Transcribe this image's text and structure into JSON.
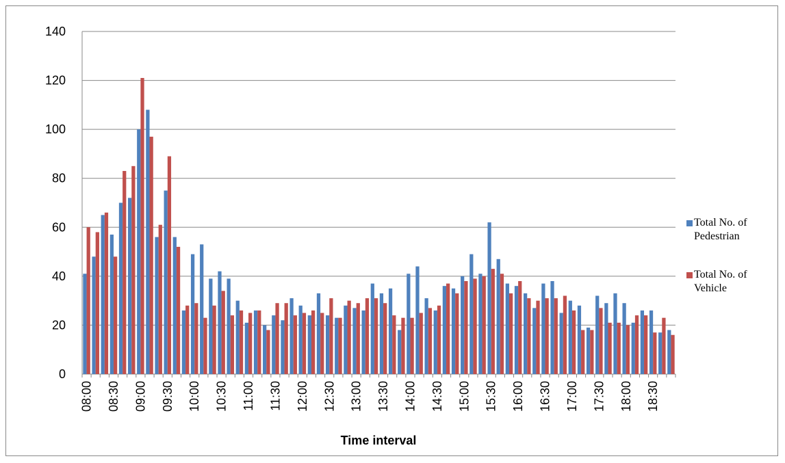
{
  "chart_data": {
    "type": "bar",
    "x_label": "Time interval",
    "categories": [
      "08:00",
      null,
      null,
      "08:30",
      null,
      null,
      "09:00",
      null,
      null,
      "09:30",
      null,
      null,
      "10:00",
      null,
      null,
      "10:30",
      null,
      null,
      "11:00",
      null,
      null,
      "11:30",
      null,
      null,
      "12:00",
      null,
      null,
      "12:30",
      null,
      null,
      "13:00",
      null,
      null,
      "13:30",
      null,
      null,
      "14:00",
      null,
      null,
      "14:30",
      null,
      null,
      "15:00",
      null,
      null,
      "15:30",
      null,
      null,
      "16:00",
      null,
      null,
      "16:30",
      null,
      null,
      "17:00",
      null,
      null,
      "17:30",
      null,
      null,
      "18:00",
      null,
      null,
      "18:30",
      null,
      null
    ],
    "series": [
      {
        "name": "Total No. of Pedestrian",
        "color": "#4f81bd",
        "values": [
          41,
          48,
          65,
          57,
          70,
          72,
          100,
          108,
          56,
          75,
          56,
          26,
          49,
          53,
          39,
          42,
          39,
          30,
          21,
          26,
          20,
          24,
          22,
          31,
          28,
          24,
          33,
          24,
          23,
          28,
          27,
          26,
          37,
          33,
          35,
          18,
          41,
          44,
          31,
          26,
          36,
          35,
          40,
          49,
          41,
          62,
          47,
          37,
          36,
          33,
          27,
          37,
          38,
          25,
          30,
          28,
          19,
          32,
          29,
          33,
          29,
          21,
          26,
          26,
          17,
          18
        ]
      },
      {
        "name": "Total No. of Vehicle",
        "color": "#c0504d",
        "values": [
          60,
          58,
          66,
          48,
          83,
          85,
          121,
          97,
          61,
          89,
          52,
          28,
          29,
          23,
          28,
          34,
          24,
          26,
          25,
          26,
          18,
          29,
          29,
          24,
          25,
          26,
          25,
          31,
          23,
          30,
          29,
          31,
          31,
          29,
          24,
          23,
          23,
          25,
          27,
          28,
          37,
          33,
          38,
          39,
          40,
          43,
          41,
          33,
          38,
          31,
          30,
          31,
          31,
          32,
          26,
          18,
          18,
          27,
          21,
          21,
          20,
          24,
          24,
          17,
          23,
          16
        ]
      }
    ],
    "ylim": [
      0,
      140
    ],
    "yticks": [
      0,
      20,
      40,
      60,
      80,
      100,
      120,
      140
    ],
    "grid": true
  }
}
